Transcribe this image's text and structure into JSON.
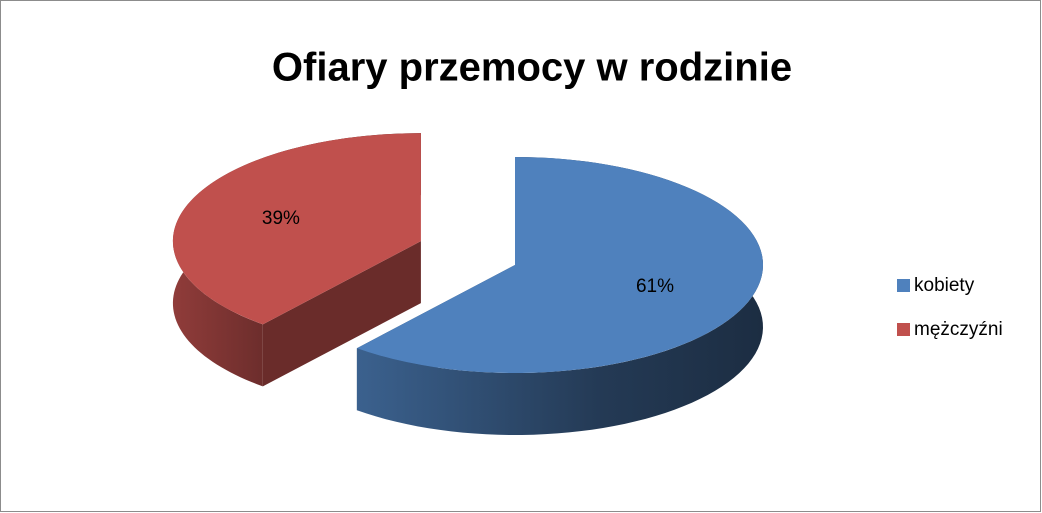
{
  "chart_data": {
    "type": "pie",
    "title": "Ofiary przemocy w rodzinie",
    "categories": [
      "kobiety",
      "mężczyźni"
    ],
    "values": [
      61,
      39
    ],
    "value_labels": [
      "61%",
      "39%"
    ],
    "colors": [
      "#4f81bd",
      "#c0504d"
    ],
    "legend": "right"
  }
}
